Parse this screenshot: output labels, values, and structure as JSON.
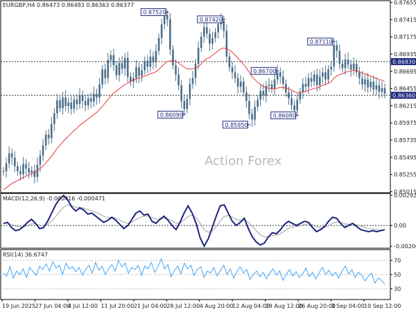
{
  "chart_data": [
    {
      "type": "candlestick",
      "panel": "price",
      "header": "EURGBP,H4  0.86473 0.86483 0.86363 0.86377",
      "watermark": "Action Forex",
      "ylim": [
        0.85,
        0.8768
      ],
      "yticks": [
        "0.87655",
        "0.87415",
        "0.87175",
        "0.86935",
        "0.86695",
        "0.86455",
        "0.86215",
        "0.85975",
        "0.85735",
        "0.85495",
        "0.85255",
        "0.85015"
      ],
      "level_lines": [
        {
          "value": 0.8683,
          "label": "0.86830",
          "color": "#1a237e"
        },
        {
          "value": 0.8636,
          "label": "0.86360",
          "color": "#1a237e"
        }
      ],
      "annotations": [
        {
          "label": "0.87520",
          "value": 0.8752,
          "x_index": 58
        },
        {
          "label": "0.87420",
          "value": 0.8742,
          "x_index": 78
        },
        {
          "label": "0.86090",
          "value": 0.8609,
          "x_index": 64
        },
        {
          "label": "0.85950",
          "value": 0.8595,
          "x_index": 87
        },
        {
          "label": "0.86700",
          "value": 0.867,
          "x_index": 97
        },
        {
          "label": "0.86080",
          "value": 0.8608,
          "x_index": 104
        },
        {
          "label": "0.87110",
          "value": 0.8711,
          "x_index": 117
        }
      ],
      "series_close": [
        0.853,
        0.8541,
        0.8555,
        0.8549,
        0.8537,
        0.853,
        0.8526,
        0.854,
        0.8534,
        0.8528,
        0.8531,
        0.8522,
        0.8539,
        0.8552,
        0.8566,
        0.8581,
        0.8576,
        0.8596,
        0.8611,
        0.8629,
        0.8618,
        0.8633,
        0.8621,
        0.8626,
        0.8617,
        0.863,
        0.8624,
        0.8636,
        0.8628,
        0.8622,
        0.8632,
        0.8627,
        0.8638,
        0.8633,
        0.8651,
        0.8672,
        0.866,
        0.8685,
        0.8692,
        0.8678,
        0.8664,
        0.8681,
        0.8673,
        0.8688,
        0.8662,
        0.8655,
        0.866,
        0.8675,
        0.8663,
        0.8671,
        0.8684,
        0.8676,
        0.869,
        0.8682,
        0.8698,
        0.8716,
        0.8735,
        0.8748,
        0.8742,
        0.87,
        0.8678,
        0.8665,
        0.865,
        0.8628,
        0.8617,
        0.8631,
        0.8652,
        0.866,
        0.868,
        0.8702,
        0.8718,
        0.8731,
        0.8722,
        0.8708,
        0.8716,
        0.8724,
        0.8735,
        0.874,
        0.8726,
        0.869,
        0.8675,
        0.8668,
        0.866,
        0.8648,
        0.8655,
        0.864,
        0.8628,
        0.861,
        0.8602,
        0.862,
        0.863,
        0.8642,
        0.8636,
        0.8649,
        0.8651,
        0.8645,
        0.8658,
        0.8668,
        0.8662,
        0.8652,
        0.864,
        0.8632,
        0.8622,
        0.8615,
        0.863,
        0.864,
        0.8652,
        0.8648,
        0.866,
        0.8655,
        0.8665,
        0.865,
        0.8662,
        0.8668,
        0.8658,
        0.8672,
        0.8676,
        0.8706,
        0.8698,
        0.868,
        0.8674,
        0.8686,
        0.8679,
        0.8672,
        0.868,
        0.8668,
        0.866,
        0.8651,
        0.8658,
        0.8647,
        0.8655,
        0.8644,
        0.865,
        0.8641,
        0.8646,
        0.8638
      ],
      "ma_line": [
        0.8504,
        0.8507,
        0.851,
        0.8513,
        0.8515,
        0.8517,
        0.8519,
        0.8521,
        0.8523,
        0.8525,
        0.8527,
        0.8528,
        0.8531,
        0.8534,
        0.8537,
        0.8542,
        0.8546,
        0.8551,
        0.8556,
        0.8562,
        0.8566,
        0.8571,
        0.8575,
        0.8579,
        0.8583,
        0.8587,
        0.859,
        0.8594,
        0.8597,
        0.86,
        0.8603,
        0.8606,
        0.8609,
        0.8612,
        0.8616,
        0.8621,
        0.8625,
        0.863,
        0.8635,
        0.8639,
        0.8642,
        0.8645,
        0.8648,
        0.8651,
        0.8653,
        0.8655,
        0.8657,
        0.8659,
        0.866,
        0.8661,
        0.8663,
        0.8664,
        0.8666,
        0.8667,
        0.8669,
        0.8672,
        0.8676,
        0.868,
        0.8683,
        0.8684,
        0.8684,
        0.8683,
        0.8681,
        0.8678,
        0.8675,
        0.8673,
        0.8673,
        0.8673,
        0.8674,
        0.8676,
        0.868,
        0.8684,
        0.8687,
        0.8689,
        0.8692,
        0.8695,
        0.8698,
        0.8701,
        0.8702,
        0.8701,
        0.8699,
        0.8696,
        0.8692,
        0.8688,
        0.8684,
        0.8679,
        0.8674,
        0.8668,
        0.8662,
        0.8658,
        0.8654,
        0.8651,
        0.8648,
        0.8647,
        0.8646,
        0.8645,
        0.8645,
        0.8646,
        0.8647,
        0.8647,
        0.8646,
        0.8645,
        0.8643,
        0.8641,
        0.864,
        0.864,
        0.8641,
        0.8641,
        0.8643,
        0.8644,
        0.8646,
        0.8646,
        0.8648,
        0.865,
        0.8651,
        0.8653,
        0.8655,
        0.866,
        0.8663,
        0.8665,
        0.8666,
        0.8668,
        0.8669,
        0.867,
        0.8671,
        0.867,
        0.8669,
        0.8667,
        0.8666,
        0.8664,
        0.8663,
        0.8661,
        0.866,
        0.8658,
        0.8657,
        0.8655
      ],
      "line_color": "#4a6e8a",
      "ma_color": "#e53935"
    },
    {
      "type": "line",
      "panel": "macd",
      "header": "MACD(12,26,9) -0.000416 -0.000471",
      "yticks": [
        "0.002925",
        "0.00",
        "-0.002002"
      ],
      "ylim": [
        -0.0022,
        0.0031
      ],
      "macd": [
        0.0002,
        0.0003,
        -0.0002,
        -0.0005,
        -0.0004,
        -0.0001,
        0.0003,
        0.0006,
        0.0002,
        -0.0003,
        -0.0002,
        0.0004,
        0.0012,
        0.002,
        0.0026,
        0.0029,
        0.0025,
        0.0018,
        0.0014,
        0.0017,
        0.0015,
        0.0011,
        0.0012,
        0.0009,
        0.0006,
        0.0003,
        0.0005,
        0.0008,
        0.0005,
        0.0001,
        -0.0003,
        0.0,
        0.0006,
        0.0012,
        0.0014,
        0.001,
        0.0011,
        0.0004,
        0.0002,
        0.0006,
        0.0009,
        0.0005,
        0.0,
        -0.0004,
        0.0003,
        0.0012,
        0.0019,
        0.0012,
        0.0002,
        -0.0012,
        -0.002,
        -0.0013,
        -0.0002,
        0.0009,
        0.0019,
        0.002,
        0.0012,
        0.0004,
        0.0,
        0.0003,
        0.0007,
        -0.0003,
        -0.0011,
        -0.0016,
        -0.0019,
        -0.0017,
        -0.0011,
        -0.0007,
        -0.0008,
        -0.0004,
        0.0001,
        0.0004,
        0.0002,
        0.0,
        0.0002,
        0.0004,
        0.0003,
        -0.0002,
        -0.0006,
        -0.0004,
        -0.0001,
        0.0004,
        0.0008,
        0.0007,
        0.0002,
        -0.0002,
        0.0,
        0.0002,
        -0.0001,
        -0.0004,
        -0.0005,
        -0.0006,
        -0.0005,
        -0.0006,
        -0.0005,
        -0.0004
      ],
      "signal_color": "#9e9e9e",
      "macd_color": "#1a237e"
    },
    {
      "type": "line",
      "panel": "rsi",
      "header": "RSI(14) 36.6747",
      "yticks": [
        "70",
        "50",
        "30"
      ],
      "ylim": [
        15,
        85
      ],
      "rsi": [
        52,
        48,
        61,
        45,
        55,
        50,
        58,
        46,
        60,
        54,
        49,
        62,
        57,
        65,
        55,
        68,
        59,
        63,
        50,
        66,
        58,
        61,
        54,
        60,
        49,
        57,
        63,
        52,
        67,
        56,
        62,
        50,
        58,
        64,
        55,
        70,
        61,
        66,
        52,
        60,
        57,
        63,
        49,
        62,
        58,
        67,
        53,
        61,
        72,
        58,
        64,
        47,
        56,
        62,
        51,
        66,
        58,
        63,
        49,
        57,
        61,
        46,
        55,
        52,
        60,
        48,
        56,
        63,
        50,
        58,
        45,
        54,
        61,
        52,
        57,
        43,
        50,
        55,
        47,
        53,
        44,
        52,
        58,
        49,
        55,
        42,
        50,
        57,
        48,
        54,
        46,
        51,
        59,
        47,
        53,
        44,
        52,
        60,
        50,
        56,
        48,
        53,
        45,
        55,
        62,
        51,
        57,
        46,
        53,
        49,
        41,
        48,
        52,
        38,
        45,
        42,
        36.67
      ],
      "color": "#42a5f5",
      "levels": [
        70,
        50,
        30
      ]
    }
  ],
  "xaxis": {
    "labels": [
      "19 Jun 2025",
      "27 Jun 04:00",
      "4 Jul 12:00",
      "11 Jul 20:00",
      "21 Jul 04:00",
      "28 Jul 12:00",
      "4 Aug 20:00",
      "12 Aug 04:00",
      "19 Aug 12:00",
      "26 Aug 20:00",
      "3 Sep 04:00",
      "10 Sep 12:00"
    ]
  }
}
